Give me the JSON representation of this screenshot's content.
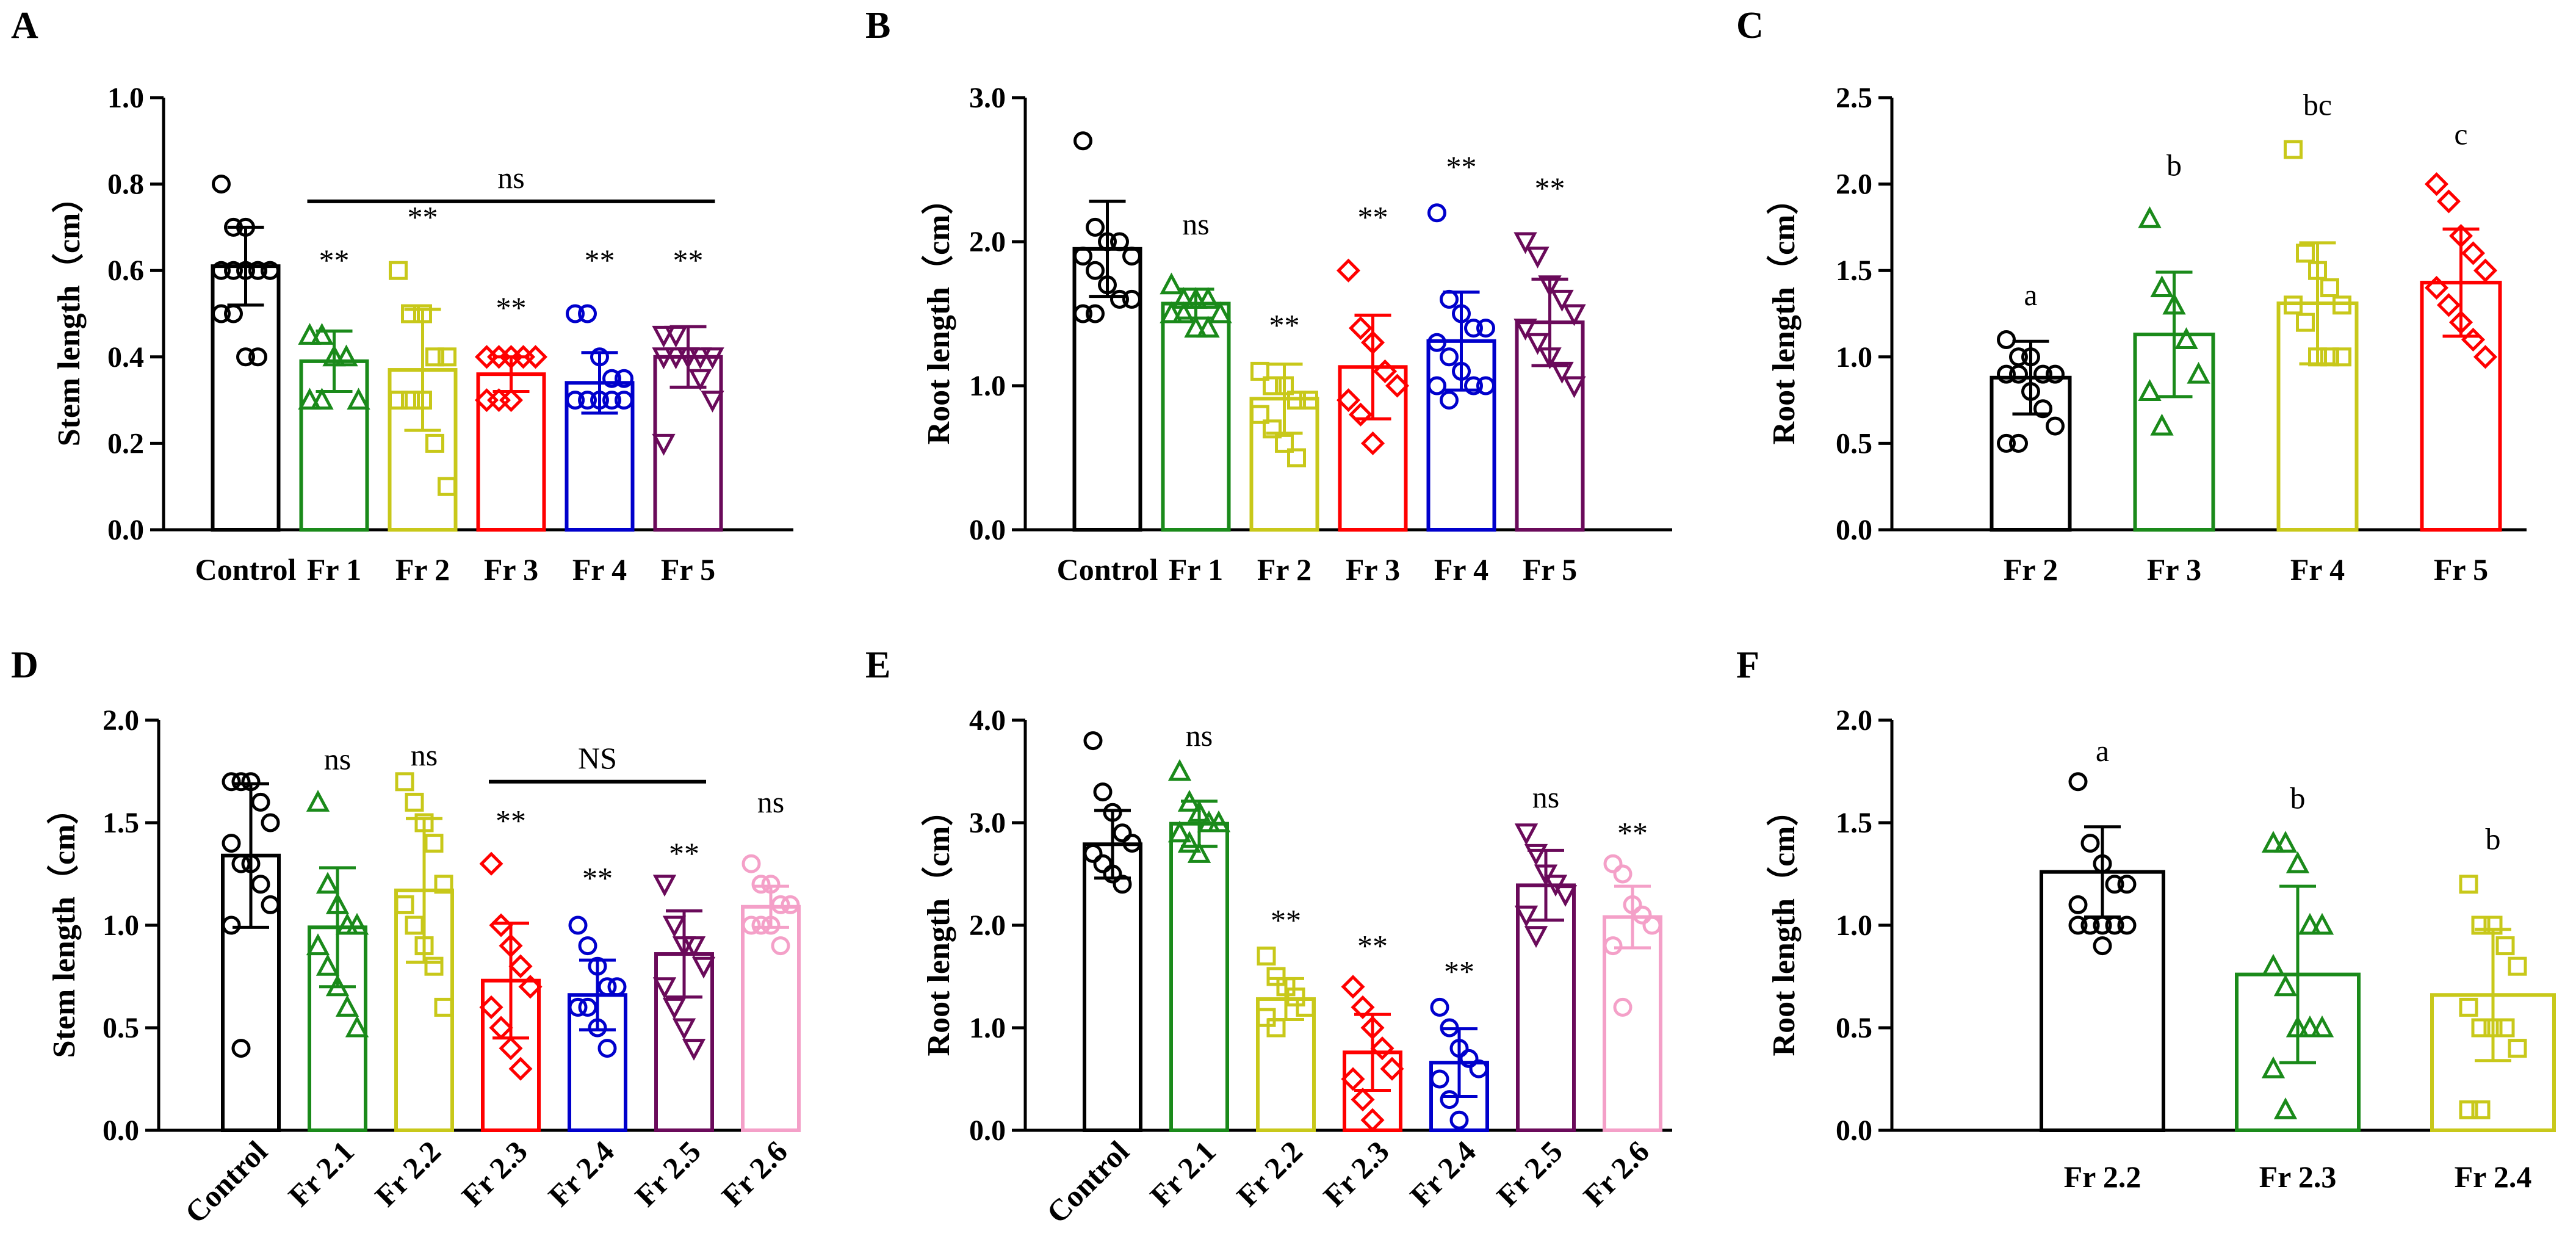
{
  "chart_data": [
    {
      "panel": "A",
      "type": "bar",
      "ylabel": "Stem length（cm）",
      "ylim": [
        0,
        1.0
      ],
      "yticks": [
        "0.0",
        "0.2",
        "0.4",
        "0.6",
        "0.8",
        "1.0"
      ],
      "ytick_values": [
        0,
        0.2,
        0.4,
        0.6,
        0.8,
        1.0
      ],
      "categories": [
        "Control",
        "Fr 1",
        "Fr 2",
        "Fr 3",
        "Fr 4",
        "Fr 5"
      ],
      "colors": [
        "#000000",
        "#1a8a1a",
        "#c8c81a",
        "#ff0000",
        "#0000cc",
        "#6a0a5a"
      ],
      "markers": [
        "circle",
        "triangle",
        "square",
        "diamond",
        "circle",
        "triangle-down"
      ],
      "values": [
        0.61,
        0.39,
        0.37,
        0.36,
        0.34,
        0.4
      ],
      "sd": [
        0.09,
        0.07,
        0.14,
        0.04,
        0.07,
        0.07
      ],
      "points": [
        [
          0.8,
          0.7,
          0.7,
          0.6,
          0.6,
          0.6,
          0.6,
          0.6,
          0.6,
          0.6,
          0.5,
          0.5,
          0.4,
          0.4
        ],
        [
          0.45,
          0.45,
          0.4,
          0.4,
          0.3,
          0.3,
          0.3
        ],
        [
          0.6,
          0.5,
          0.5,
          0.4,
          0.4,
          0.3,
          0.3,
          0.3,
          0.2,
          0.1
        ],
        [
          0.4,
          0.4,
          0.4,
          0.4,
          0.4,
          0.3,
          0.3,
          0.3
        ],
        [
          0.5,
          0.5,
          0.4,
          0.35,
          0.35,
          0.3,
          0.3,
          0.3,
          0.3,
          0.3,
          0.3
        ],
        [
          0.45,
          0.45,
          0.4,
          0.4,
          0.4,
          0.4,
          0.4,
          0.4,
          0.35,
          0.3,
          0.2
        ]
      ],
      "labels": [
        "",
        "**",
        "**",
        "**",
        "**",
        "**"
      ],
      "label_values": [
        0,
        0.6,
        0.7,
        0.49,
        0.6,
        0.6
      ],
      "bracket": {
        "from": 1,
        "to": 5,
        "value": 0.76,
        "text": "ns"
      },
      "xlabel_rotated": false
    },
    {
      "panel": "B",
      "type": "bar",
      "ylabel": "Root length（cm）",
      "ylim": [
        0,
        3.0
      ],
      "yticks": [
        "0.0",
        "1.0",
        "2.0",
        "3.0"
      ],
      "ytick_values": [
        0,
        1,
        2,
        3
      ],
      "categories": [
        "Control",
        "Fr 1",
        "Fr 2",
        "Fr 3",
        "Fr 4",
        "Fr 5"
      ],
      "colors": [
        "#000000",
        "#1a8a1a",
        "#c8c81a",
        "#ff0000",
        "#0000cc",
        "#6a0a5a"
      ],
      "markers": [
        "circle",
        "triangle",
        "square",
        "diamond",
        "circle",
        "triangle-down"
      ],
      "values": [
        1.95,
        1.57,
        0.91,
        1.13,
        1.31,
        1.44
      ],
      "sd": [
        0.33,
        0.1,
        0.24,
        0.36,
        0.34,
        0.3
      ],
      "points": [
        [
          2.7,
          2.1,
          2.0,
          2.0,
          1.9,
          1.9,
          1.8,
          1.7,
          1.6,
          1.6,
          1.5,
          1.5
        ],
        [
          1.7,
          1.6,
          1.6,
          1.6,
          1.5,
          1.5,
          1.5,
          1.4,
          1.4
        ],
        [
          1.1,
          1.0,
          1.0,
          0.9,
          0.9,
          0.8,
          0.7,
          0.6,
          0.5
        ],
        [
          1.8,
          1.4,
          1.3,
          1.1,
          1.0,
          0.9,
          0.8,
          0.6
        ],
        [
          2.2,
          1.6,
          1.5,
          1.4,
          1.4,
          1.3,
          1.2,
          1.1,
          1.0,
          1.0,
          1.0,
          0.9
        ],
        [
          2.0,
          1.9,
          1.7,
          1.6,
          1.5,
          1.4,
          1.3,
          1.2,
          1.1,
          1.0
        ]
      ],
      "labels": [
        "",
        "ns",
        "**",
        "**",
        "**",
        "**"
      ],
      "label_values": [
        0,
        2.05,
        1.35,
        2.1,
        2.45,
        2.3
      ],
      "xlabel_rotated": false
    },
    {
      "panel": "C",
      "type": "bar",
      "ylabel": "Root length（cm）",
      "ylim": [
        0,
        2.5
      ],
      "yticks": [
        "0.0",
        "0.5",
        "1.0",
        "1.5",
        "2.0",
        "2.5"
      ],
      "ytick_values": [
        0,
        0.5,
        1,
        1.5,
        2,
        2.5
      ],
      "categories": [
        "Fr 2",
        "Fr 3",
        "Fr 4",
        "Fr 5"
      ],
      "colors": [
        "#000000",
        "#1a8a1a",
        "#c8c81a",
        "#ff0000"
      ],
      "markers": [
        "circle",
        "triangle",
        "square",
        "diamond"
      ],
      "values": [
        0.88,
        1.13,
        1.31,
        1.43
      ],
      "sd": [
        0.21,
        0.36,
        0.35,
        0.31
      ],
      "points": [
        [
          1.1,
          1.0,
          1.0,
          0.9,
          0.9,
          0.9,
          0.9,
          0.8,
          0.7,
          0.6,
          0.5,
          0.5
        ],
        [
          1.8,
          1.4,
          1.3,
          1.1,
          0.9,
          0.8,
          0.6
        ],
        [
          2.2,
          1.6,
          1.5,
          1.4,
          1.3,
          1.3,
          1.2,
          1.0,
          1.0,
          1.0
        ],
        [
          2.0,
          1.9,
          1.7,
          1.6,
          1.5,
          1.4,
          1.3,
          1.2,
          1.1,
          1.0
        ]
      ],
      "labels": [
        "a",
        "b",
        "bc",
        "c"
      ],
      "label_values": [
        1.3,
        2.05,
        2.4,
        2.23
      ],
      "xlabel_rotated": false
    },
    {
      "panel": "D",
      "type": "bar",
      "ylabel": "Stem length（cm）",
      "ylim": [
        0,
        2.0
      ],
      "yticks": [
        "0.0",
        "0.5",
        "1.0",
        "1.5",
        "2.0"
      ],
      "ytick_values": [
        0,
        0.5,
        1,
        1.5,
        2
      ],
      "categories": [
        "Control",
        "Fr 2.1",
        "Fr 2.2",
        "Fr 2.3",
        "Fr 2.4",
        "Fr 2.5",
        "Fr 2.6"
      ],
      "colors": [
        "#000000",
        "#1a8a1a",
        "#c8c81a",
        "#ff0000",
        "#0000cc",
        "#6a0a5a",
        "#f4a0c8"
      ],
      "markers": [
        "circle",
        "triangle",
        "square",
        "diamond",
        "circle",
        "triangle-down",
        "circle"
      ],
      "values": [
        1.34,
        0.99,
        1.17,
        0.73,
        0.66,
        0.86,
        1.09
      ],
      "sd": [
        0.35,
        0.29,
        0.35,
        0.28,
        0.17,
        0.21,
        0.1
      ],
      "points": [
        [
          1.7,
          1.7,
          1.7,
          1.6,
          1.5,
          1.4,
          1.3,
          1.3,
          1.2,
          1.1,
          1.0,
          0.4
        ],
        [
          1.6,
          1.2,
          1.1,
          1.0,
          1.0,
          0.9,
          0.8,
          0.7,
          0.6,
          0.5
        ],
        [
          1.7,
          1.6,
          1.5,
          1.4,
          1.2,
          1.1,
          1.0,
          0.9,
          0.8,
          0.6
        ],
        [
          1.3,
          1.0,
          0.9,
          0.8,
          0.7,
          0.6,
          0.5,
          0.4,
          0.3
        ],
        [
          1.0,
          0.9,
          0.8,
          0.7,
          0.7,
          0.6,
          0.6,
          0.5,
          0.4
        ],
        [
          1.2,
          1.0,
          0.9,
          0.9,
          0.8,
          0.7,
          0.6,
          0.5,
          0.4
        ],
        [
          1.3,
          1.2,
          1.2,
          1.1,
          1.1,
          1.0,
          1.0,
          1.0,
          0.9
        ]
      ],
      "labels": [
        "",
        "ns",
        "ns",
        "**",
        "**",
        "**",
        "ns"
      ],
      "label_values": [
        0,
        1.76,
        1.78,
        1.46,
        1.18,
        1.3,
        1.55
      ],
      "bracket": {
        "from": 3,
        "to": 5,
        "value": 1.7,
        "text": "NS"
      },
      "xlabel_rotated": true
    },
    {
      "panel": "E",
      "type": "bar",
      "ylabel": "Root length（cm）",
      "ylim": [
        0,
        4.0
      ],
      "yticks": [
        "0.0",
        "1.0",
        "2.0",
        "3.0",
        "4.0"
      ],
      "ytick_values": [
        0,
        1,
        2,
        3,
        4
      ],
      "categories": [
        "Control",
        "Fr 2.1",
        "Fr 2.2",
        "Fr 2.3",
        "Fr 2.4",
        "Fr 2.5",
        "Fr 2.6"
      ],
      "colors": [
        "#000000",
        "#1a8a1a",
        "#c8c81a",
        "#ff0000",
        "#0000cc",
        "#6a0a5a",
        "#f4a0c8"
      ],
      "markers": [
        "circle",
        "triangle",
        "square",
        "diamond",
        "circle",
        "triangle-down",
        "circle"
      ],
      "values": [
        2.79,
        2.99,
        1.28,
        0.76,
        0.66,
        2.39,
        2.08
      ],
      "sd": [
        0.33,
        0.22,
        0.2,
        0.37,
        0.33,
        0.34,
        0.3
      ],
      "points": [
        [
          3.8,
          3.3,
          3.1,
          2.9,
          2.8,
          2.7,
          2.6,
          2.5,
          2.4
        ],
        [
          3.5,
          3.2,
          3.1,
          3.0,
          3.0,
          2.9,
          2.8,
          2.7
        ],
        [
          1.7,
          1.5,
          1.4,
          1.3,
          1.2,
          1.1,
          1.0
        ],
        [
          1.4,
          1.2,
          1.0,
          0.8,
          0.6,
          0.5,
          0.3,
          0.1
        ],
        [
          1.2,
          1.0,
          0.8,
          0.7,
          0.6,
          0.5,
          0.3,
          0.1
        ],
        [
          2.9,
          2.7,
          2.5,
          2.4,
          2.3,
          2.1,
          1.9
        ],
        [
          2.6,
          2.5,
          2.2,
          2.1,
          2.0,
          1.8,
          1.2
        ]
      ],
      "labels": [
        "",
        "ns",
        "**",
        "**",
        "**",
        "ns",
        "**"
      ],
      "label_values": [
        0,
        3.75,
        1.95,
        1.7,
        1.45,
        3.15,
        2.8
      ],
      "xlabel_rotated": true
    },
    {
      "panel": "F",
      "type": "bar",
      "ylabel": "Root length（cm）",
      "ylim": [
        0,
        2.0
      ],
      "yticks": [
        "0.0",
        "0.5",
        "1.0",
        "1.5",
        "2.0"
      ],
      "ytick_values": [
        0,
        0.5,
        1,
        1.5,
        2
      ],
      "categories": [
        "Fr 2.2",
        "Fr 2.3",
        "Fr 2.4"
      ],
      "colors": [
        "#000000",
        "#1a8a1a",
        "#c8c81a"
      ],
      "markers": [
        "circle",
        "triangle",
        "square"
      ],
      "values": [
        1.26,
        0.76,
        0.66
      ],
      "sd": [
        0.22,
        0.43,
        0.32
      ],
      "points": [
        [
          1.7,
          1.4,
          1.3,
          1.2,
          1.2,
          1.1,
          1.0,
          1.0,
          1.0,
          1.0,
          1.0,
          1.0,
          0.9
        ],
        [
          1.4,
          1.4,
          1.3,
          1.0,
          1.0,
          0.8,
          0.7,
          0.5,
          0.5,
          0.5,
          0.3,
          0.1
        ],
        [
          1.2,
          1.0,
          1.0,
          0.9,
          0.8,
          0.6,
          0.5,
          0.5,
          0.5,
          0.4,
          0.1,
          0.1
        ]
      ],
      "labels": [
        "a",
        "b",
        "b"
      ],
      "label_values": [
        1.8,
        1.57,
        1.37
      ],
      "xlabel_rotated": false
    }
  ]
}
